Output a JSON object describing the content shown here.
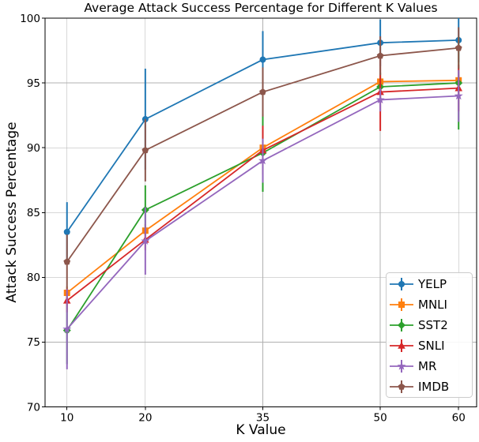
{
  "chart_data": {
    "type": "line",
    "title": "Average Attack Success Percentage for Different K Values",
    "xlabel": "K Value",
    "ylabel": "Attack Success Percentage",
    "x": [
      10,
      20,
      35,
      50,
      60
    ],
    "xticks": [
      "10",
      "20",
      "35",
      "50",
      "60"
    ],
    "yticks": [
      70,
      75,
      80,
      85,
      90,
      95,
      100
    ],
    "xlim": [
      7.2,
      62.3
    ],
    "ylim": [
      70,
      100
    ],
    "grid": true,
    "grid_color": "#b0b0b0",
    "legend": {
      "position": "lower right",
      "entries": [
        "YELP",
        "MNLI",
        "SST2",
        "SNLI",
        "MR",
        "IMDB"
      ]
    },
    "series": [
      {
        "name": "YELP",
        "color": "#1f77b4",
        "marker": "circle",
        "values": [
          83.5,
          92.2,
          96.8,
          98.1,
          98.3
        ],
        "yerr": [
          2.3,
          3.9,
          2.2,
          1.8,
          1.7
        ]
      },
      {
        "name": "MNLI",
        "color": "#ff7f0e",
        "marker": "square",
        "values": [
          78.8,
          83.6,
          90.0,
          95.1,
          95.2
        ],
        "yerr": [
          0.5,
          0.5,
          0.5,
          0.4,
          0.4
        ]
      },
      {
        "name": "SST2",
        "color": "#2ca02c",
        "marker": "diamond",
        "values": [
          75.9,
          85.2,
          89.6,
          94.7,
          95.0
        ],
        "yerr": [
          2.6,
          1.9,
          3.0,
          1.1,
          3.6
        ]
      },
      {
        "name": "SNLI",
        "color": "#d62728",
        "marker": "triangle",
        "values": [
          78.2,
          82.9,
          89.8,
          94.3,
          94.6
        ],
        "yerr": [
          0.9,
          0.8,
          1.9,
          3.0,
          1.8
        ]
      },
      {
        "name": "MR",
        "color": "#9467bd",
        "marker": "star",
        "values": [
          76.0,
          82.8,
          89.0,
          93.7,
          94.0
        ],
        "yerr": [
          3.1,
          2.6,
          1.7,
          0.9,
          2.0
        ]
      },
      {
        "name": "IMDB",
        "color": "#8c564b",
        "marker": "pentagon",
        "values": [
          81.2,
          89.8,
          94.3,
          97.1,
          97.7
        ],
        "yerr": [
          2.1,
          2.4,
          1.9,
          1.5,
          1.6
        ]
      }
    ]
  }
}
